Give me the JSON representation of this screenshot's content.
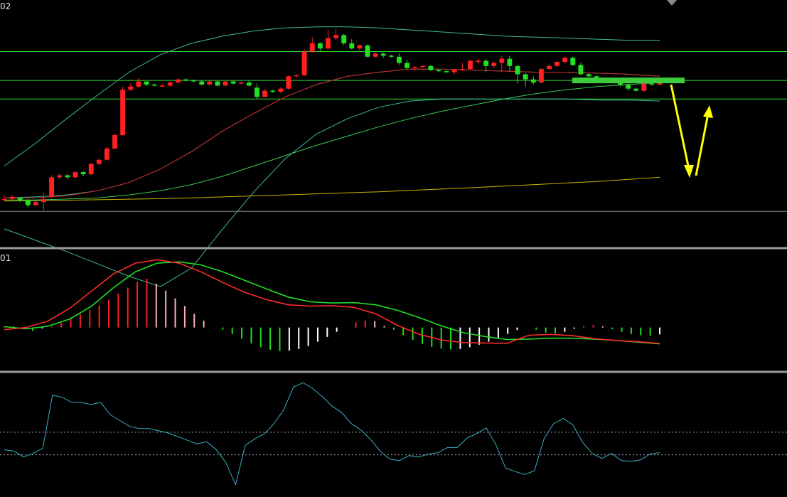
{
  "panels": {
    "main_label": "02",
    "macd_label": "01"
  },
  "colors": {
    "up": "#ff2020",
    "down": "#22e022",
    "level_line": "#33dd33",
    "bb": "#3fb8a0",
    "ma_fast": "#cc2020",
    "ma_mid": "#33cc55",
    "ma_slow": "#c8b400",
    "macd_diff": "#ff2a2a",
    "macd_dea": "#22dd22",
    "osc": "#3aaec0",
    "arrow": "#ffff00"
  },
  "chart_data": [
    {
      "type": "candlestick",
      "candles": [
        [
          139,
          139,
          142,
          137
        ],
        [
          139,
          141,
          143,
          138
        ],
        [
          140,
          138,
          141,
          136
        ],
        [
          138,
          133,
          139,
          131
        ],
        [
          133,
          136,
          137,
          132
        ],
        [
          136,
          139,
          145,
          128
        ],
        [
          141,
          160,
          162,
          140
        ],
        [
          160,
          162,
          164,
          158
        ],
        [
          162,
          160,
          163,
          158
        ],
        [
          160,
          165,
          166,
          159
        ],
        [
          165,
          163,
          166,
          161
        ],
        [
          163,
          173,
          174,
          162
        ],
        [
          173,
          177,
          178,
          171
        ],
        [
          177,
          188,
          190,
          176
        ],
        [
          188,
          201,
          203,
          187
        ],
        [
          201,
          245,
          248,
          200
        ],
        [
          245,
          248,
          251,
          244
        ],
        [
          248,
          253,
          256,
          247
        ],
        [
          253,
          250,
          253,
          248
        ],
        [
          250,
          249,
          251,
          248
        ],
        [
          249,
          249,
          251,
          248
        ],
        [
          249,
          252,
          253,
          248
        ],
        [
          252,
          255,
          256,
          251
        ],
        [
          255,
          254,
          256,
          253
        ],
        [
          254,
          253,
          255,
          252
        ],
        [
          253,
          250,
          254,
          249
        ],
        [
          250,
          253,
          254,
          249
        ],
        [
          253,
          249,
          254,
          248
        ],
        [
          249,
          253,
          254,
          248
        ],
        [
          253,
          251,
          254,
          250
        ],
        [
          251,
          252,
          253,
          250
        ],
        [
          252,
          249,
          254,
          248
        ],
        [
          247,
          238,
          251,
          236
        ],
        [
          238,
          244,
          246,
          238
        ],
        [
          244,
          243,
          245,
          242
        ],
        [
          243,
          246,
          247,
          242
        ],
        [
          246,
          258,
          259,
          245
        ],
        [
          258,
          259,
          260,
          257
        ],
        [
          259,
          282,
          284,
          258
        ],
        [
          282,
          290,
          296,
          281
        ],
        [
          290,
          285,
          291,
          282
        ],
        [
          285,
          295,
          303,
          284
        ],
        [
          295,
          298,
          304,
          293
        ],
        [
          298,
          290,
          299,
          288
        ],
        [
          290,
          285,
          294,
          284
        ],
        [
          285,
          288,
          289,
          283
        ],
        [
          288,
          277,
          289,
          276
        ],
        [
          277,
          280,
          281,
          276
        ],
        [
          280,
          278,
          281,
          276
        ],
        [
          278,
          277,
          279,
          276
        ],
        [
          277,
          271,
          280,
          269
        ],
        [
          271,
          266,
          274,
          265
        ],
        [
          266,
          267,
          268,
          263
        ],
        [
          267,
          268,
          269,
          266
        ],
        [
          268,
          264,
          269,
          263
        ],
        [
          264,
          263,
          265,
          262
        ],
        [
          263,
          262,
          264,
          261
        ],
        [
          262,
          264,
          265,
          260
        ],
        [
          264,
          265,
          271,
          263
        ],
        [
          265,
          273,
          274,
          264
        ],
        [
          273,
          273,
          275,
          270
        ],
        [
          273,
          268,
          275,
          262
        ],
        [
          268,
          271,
          273,
          266
        ],
        [
          271,
          275,
          278,
          262
        ],
        [
          275,
          268,
          278,
          263
        ],
        [
          268,
          260,
          269,
          251
        ],
        [
          260,
          255,
          261,
          248
        ],
        [
          255,
          252,
          258,
          250
        ],
        [
          252,
          265,
          266,
          251
        ],
        [
          265,
          268,
          270,
          265
        ],
        [
          268,
          272,
          273,
          267
        ],
        [
          272,
          276,
          277,
          270
        ],
        [
          276,
          269,
          277,
          268
        ],
        [
          269,
          260,
          271,
          259
        ],
        [
          260,
          258,
          261,
          257
        ],
        [
          258,
          255,
          259,
          254
        ],
        [
          255,
          254,
          256,
          253
        ],
        [
          254,
          253,
          255,
          252
        ],
        [
          252,
          250,
          253,
          248
        ],
        [
          250,
          246,
          251,
          244
        ],
        [
          246,
          244,
          247,
          243
        ],
        [
          244,
          251,
          252,
          243
        ],
        [
          251,
          250,
          252,
          249
        ],
        [
          250,
          252,
          253,
          249
        ]
      ],
      "bollinger_upper": [
        171,
        193,
        217,
        240,
        262,
        279,
        290,
        297,
        302,
        305,
        306,
        306,
        305,
        303,
        301,
        299,
        297,
        296,
        295,
        294,
        293,
        293
      ],
      "bollinger_mid": [
        140,
        141,
        143,
        147,
        155,
        168,
        185,
        205,
        222,
        238,
        250,
        258,
        262,
        265,
        265,
        264,
        263,
        262,
        262,
        261,
        260,
        258
      ],
      "bollinger_lower": [
        110,
        99,
        88,
        76,
        64,
        54,
        72,
        110,
        146,
        178,
        202,
        217,
        228,
        234,
        236,
        236,
        236,
        236,
        236,
        235,
        235,
        234
      ],
      "ma_fast": [
        140,
        140,
        142,
        147,
        155,
        168,
        185,
        205,
        222,
        238,
        250,
        258,
        262,
        265,
        265,
        264,
        263,
        262,
        262,
        261,
        260,
        258
      ],
      "ma_mid": [
        138,
        138,
        139,
        140,
        143,
        147,
        153,
        161,
        171,
        181,
        191,
        200,
        209,
        217,
        224,
        230,
        236,
        241,
        245,
        248,
        250,
        252
      ],
      "ma_slow": [
        137,
        137.4,
        137.8,
        138.3,
        138.8,
        139.3,
        140,
        141,
        142,
        143,
        144,
        145,
        146,
        147.3,
        148.6,
        150,
        151.5,
        153,
        154.5,
        156,
        158,
        160
      ],
      "levels": [
        282,
        254,
        236,
        127
      ],
      "ylim": [
        92,
        332
      ]
    },
    {
      "type": "macd",
      "hist": [
        0.3,
        0.2,
        -0.4,
        -0.8,
        -0.2,
        0.2,
        1.1,
        2.2,
        3.1,
        4.1,
        5.1,
        6.4,
        7.9,
        9.3,
        10.6,
        11.4,
        10.2,
        8.6,
        6.8,
        5.0,
        3.2,
        1.6,
        0,
        -0.5,
        -1.5,
        -2.6,
        -3.7,
        -4.6,
        -5.2,
        -5.5,
        -5.4,
        -5.0,
        -4.3,
        -3.3,
        -2.2,
        -1.0,
        0,
        1.2,
        1.6,
        1.5,
        0.4,
        -0.5,
        -1.8,
        -2.9,
        -3.8,
        -4.5,
        -4.9,
        -5.1,
        -5.0,
        -4.6,
        -4.0,
        -3.3,
        -2.5,
        -1.5,
        -0.6,
        0,
        -0.5,
        -1.2,
        -1.4,
        -1.0,
        -0.3,
        0.3,
        0.6,
        0.3,
        -0.4,
        -1.0,
        -1.5,
        -1.8,
        -1.9,
        -1.6
      ],
      "diff": [
        -0.5,
        0,
        1.5,
        4.5,
        8.5,
        12.5,
        15.0,
        15.8,
        15.0,
        13.0,
        10.5,
        8.2,
        6.5,
        5.3,
        5.0,
        5.1,
        4.7,
        3.2,
        0.5,
        -1.6,
        -2.9,
        -3.5,
        -3.6,
        -3.7,
        -1.8,
        -1.6,
        -1.9,
        -2.6,
        -3.0,
        -3.3,
        -3.7
      ],
      "dea": [
        0.2,
        -0.3,
        0.3,
        2.0,
        5.0,
        9.3,
        13.0,
        15.0,
        15.3,
        14.6,
        13.0,
        11.0,
        9.0,
        7.1,
        6.0,
        5.7,
        5.8,
        5.3,
        4.0,
        2.3,
        0.4,
        -1.2,
        -2.1,
        -2.8,
        -2.7,
        -2.5,
        -2.5,
        -2.7,
        -3.0,
        -3.4,
        -3.8
      ],
      "ylim": [
        -10,
        18
      ]
    },
    {
      "type": "line",
      "values": [
        70,
        68,
        60,
        65,
        72,
        145,
        142,
        135,
        135,
        132,
        135,
        118,
        110,
        102,
        99,
        99,
        96,
        93,
        88,
        83,
        78,
        81,
        70,
        52,
        22,
        76,
        85,
        92,
        106,
        125,
        156,
        162,
        154,
        143,
        130,
        121,
        106,
        97,
        84,
        68,
        57,
        55,
        62,
        60,
        64,
        66,
        73,
        73,
        86,
        92,
        100,
        77,
        45,
        40,
        36,
        41,
        85,
        106,
        113,
        104,
        80,
        65,
        58,
        65,
        55,
        54,
        56,
        64,
        66
      ],
      "ref_lines": [
        63,
        94
      ],
      "ylim": [
        5,
        175
      ]
    }
  ]
}
